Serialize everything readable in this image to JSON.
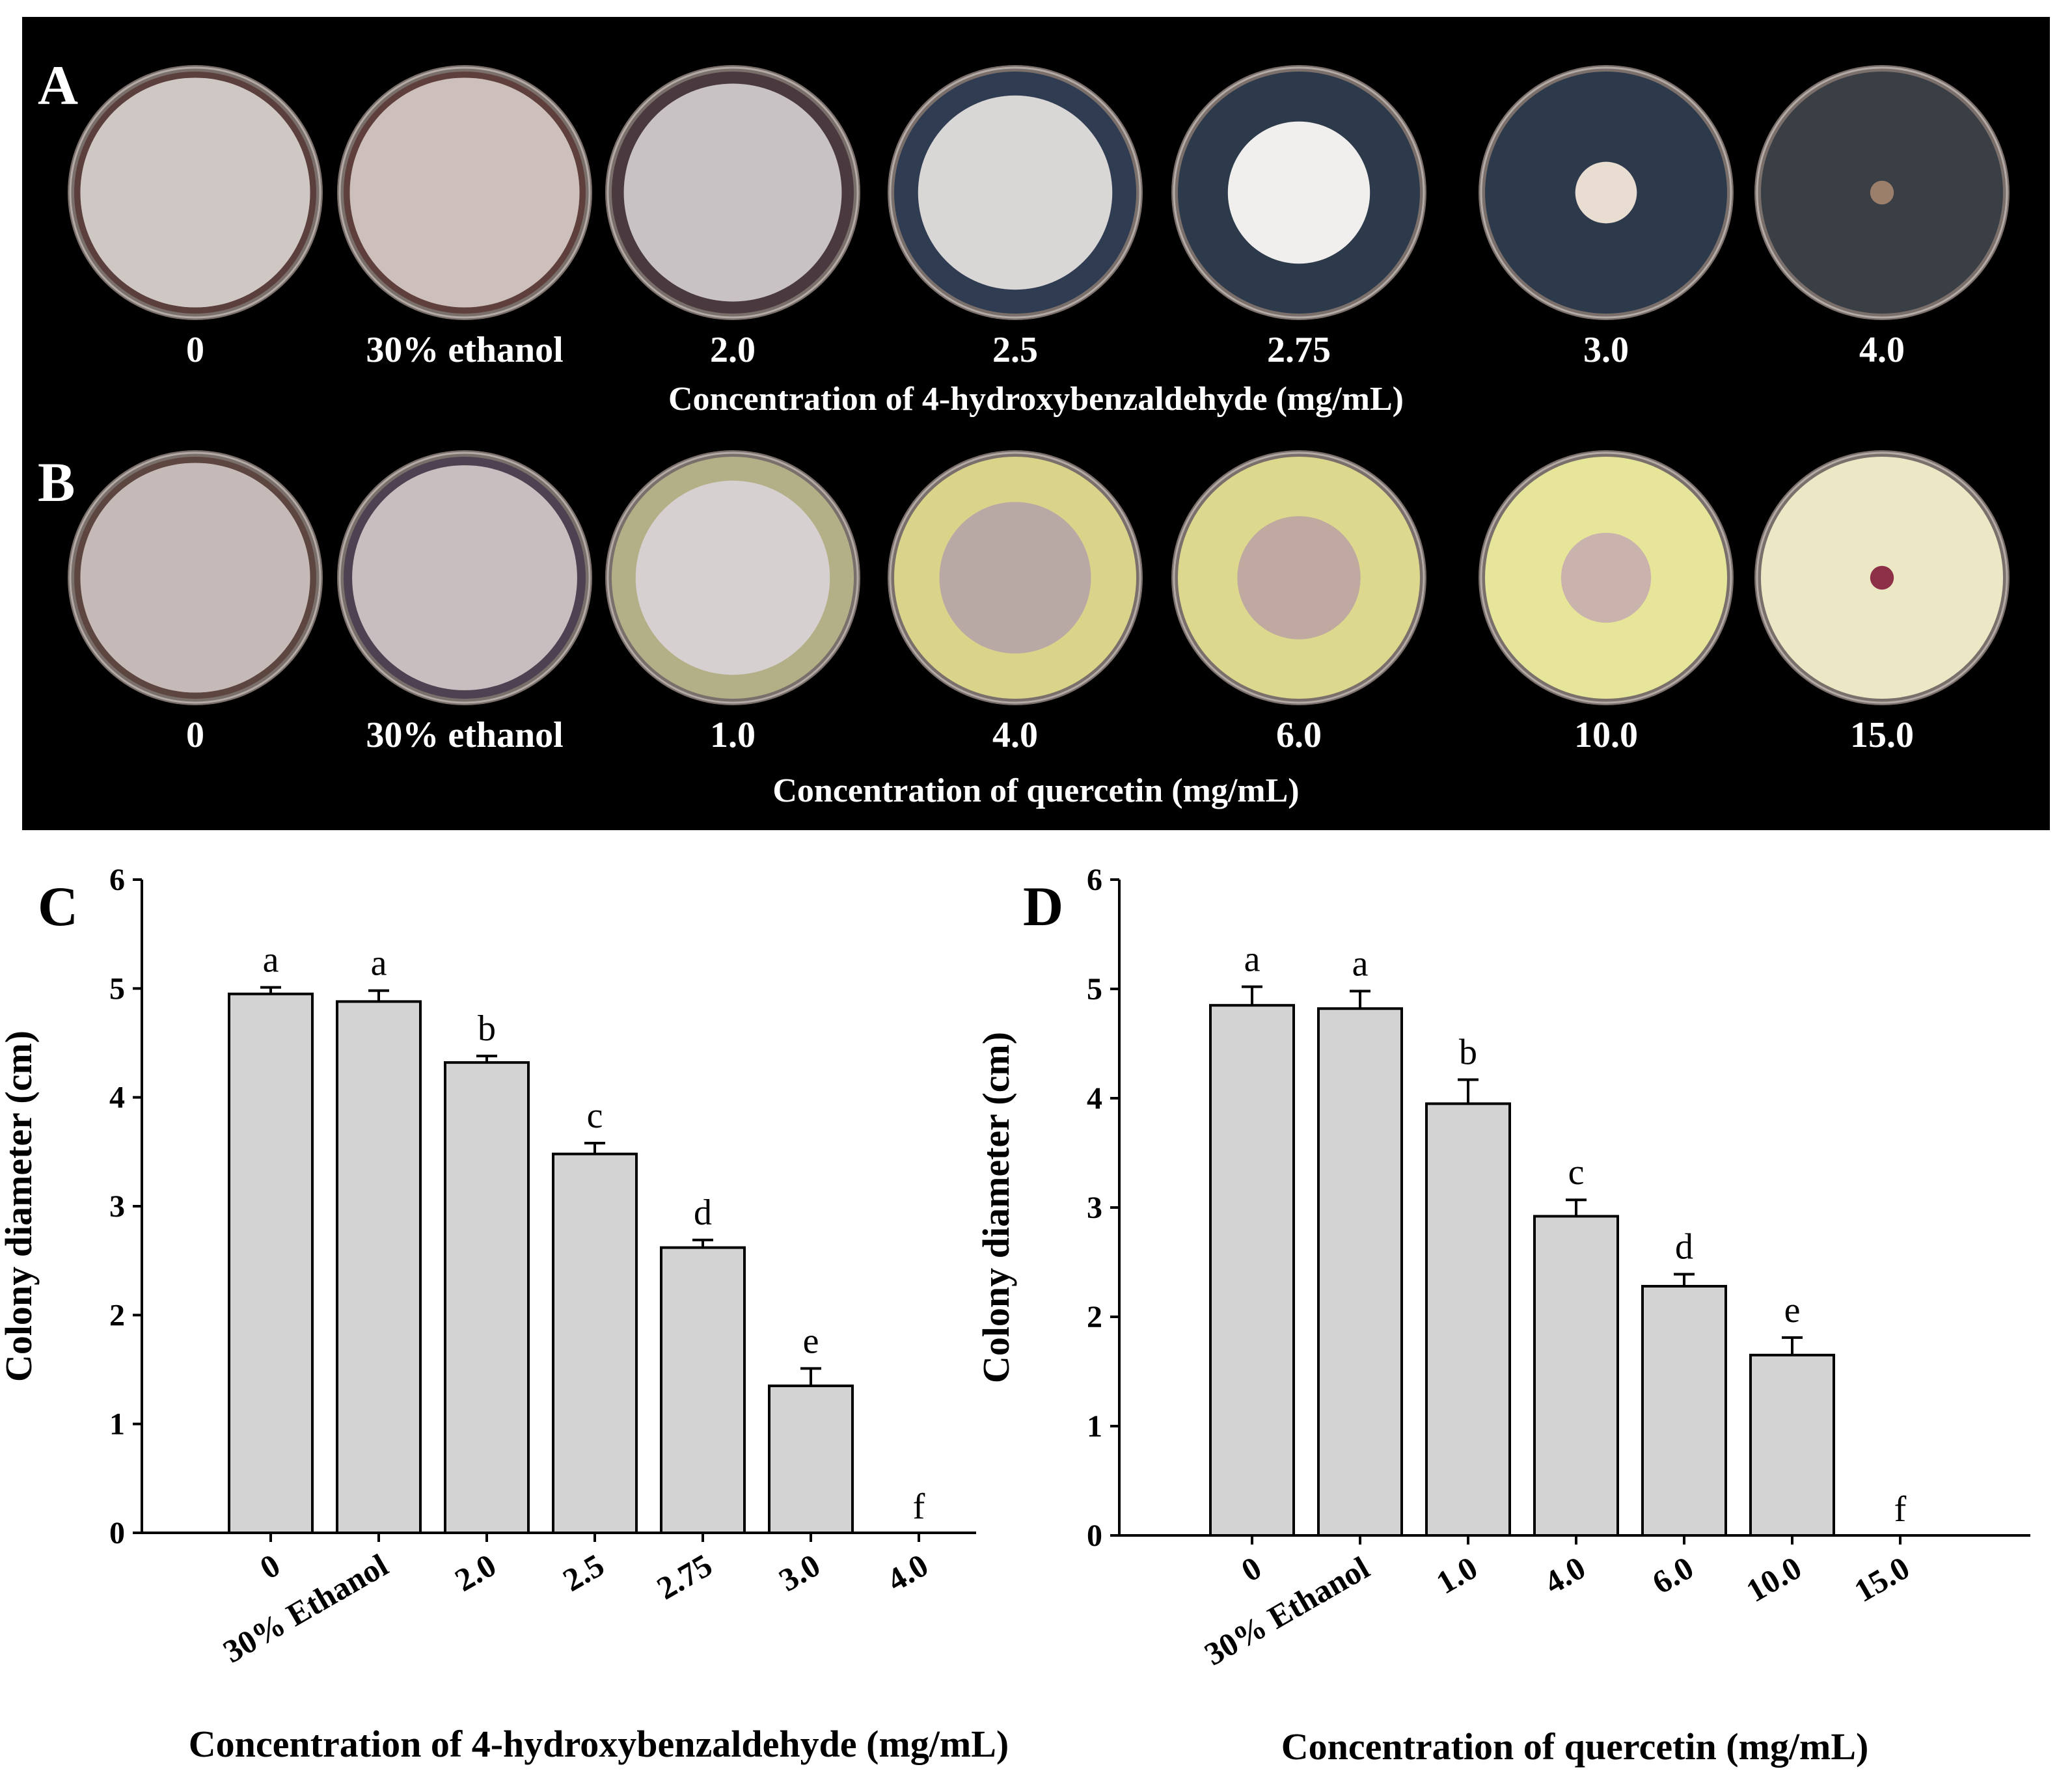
{
  "panels": {
    "A": {
      "letter": "A",
      "dish_labels": [
        "0",
        "30% ethanol",
        "2.0",
        "2.5",
        "2.75",
        "3.0",
        "4.0"
      ],
      "caption": "Concentration of 4-hydroxybenzaldehyde (mg/mL)",
      "colony_fraction": [
        0.97,
        0.97,
        0.92,
        0.82,
        0.6,
        0.26,
        0.1
      ],
      "agar_color": [
        "#5a3f3c",
        "#5e3f3b",
        "#4a3a40",
        "#2f3c52",
        "#2c3a4c",
        "#2c3a4c",
        "#3a3f46"
      ],
      "colony_color": [
        "#cfc7c4",
        "#cdbfbc",
        "#c8c2c4",
        "#d9d6d6",
        "#f0efee",
        "#e9dcd1",
        "#9c7f6a"
      ]
    },
    "B": {
      "letter": "B",
      "dish_labels": [
        "0",
        "30% ethanol",
        "1.0",
        "4.0",
        "6.0",
        "10.0",
        "15.0"
      ],
      "caption": "Concentration of quercetin (mg/mL)",
      "colony_fraction": [
        0.97,
        0.95,
        0.82,
        0.64,
        0.52,
        0.38,
        0.1
      ],
      "agar_color": [
        "#5d4640",
        "#4d4152",
        "#b3b087",
        "#d9d48a",
        "#dcd88e",
        "#e6e59a",
        "#ece8c6"
      ],
      "colony_color": [
        "#c6bab8",
        "#c9bebf",
        "#d7d0d0",
        "#b9a9a4",
        "#bfa9a1",
        "#cbb3ad",
        "#8e2f48"
      ]
    }
  },
  "chart_data": [
    {
      "type": "bar",
      "panel": "C",
      "title": "",
      "xlabel": "Concentration of 4-hydroxybenzaldehyde (mg/mL)",
      "ylabel": "Colony diameter (cm)",
      "categories": [
        "0",
        "30% Ethanol",
        "2.0",
        "2.5",
        "2.75",
        "3.0",
        "4.0"
      ],
      "values": [
        4.95,
        4.88,
        4.32,
        3.48,
        2.62,
        1.35,
        0
      ],
      "errors": [
        0.06,
        0.1,
        0.06,
        0.1,
        0.07,
        0.16,
        0
      ],
      "significance": [
        "a",
        "a",
        "b",
        "c",
        "d",
        "e",
        "f"
      ],
      "ylim": [
        0,
        6
      ],
      "yticks": [
        "0",
        "1",
        "2",
        "3",
        "4",
        "5",
        "6"
      ],
      "bar_color": "#d3d3d3",
      "grid": false
    },
    {
      "type": "bar",
      "panel": "D",
      "title": "",
      "xlabel": "Concentration of quercetin (mg/mL)",
      "ylabel": "Colony diameter (cm)",
      "categories": [
        "0",
        "30% Ethanol",
        "1.0",
        "4.0",
        "6.0",
        "10.0",
        "15.0"
      ],
      "values": [
        4.85,
        4.82,
        3.95,
        2.92,
        2.28,
        1.65,
        0
      ],
      "errors": [
        0.17,
        0.16,
        0.22,
        0.15,
        0.11,
        0.16,
        0
      ],
      "significance": [
        "a",
        "a",
        "b",
        "c",
        "d",
        "e",
        "f"
      ],
      "ylim": [
        0,
        6
      ],
      "yticks": [
        "0",
        "1",
        "2",
        "3",
        "4",
        "5",
        "6"
      ],
      "bar_color": "#d3d3d3",
      "grid": false
    }
  ]
}
